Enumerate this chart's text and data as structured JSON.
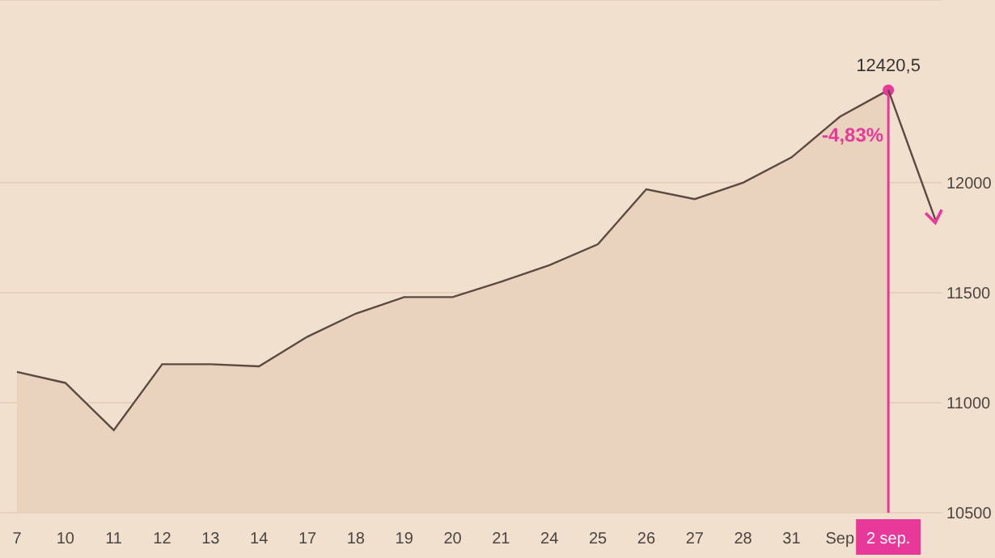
{
  "chart_data": {
    "type": "area",
    "categories": [
      "7",
      "10",
      "11",
      "12",
      "13",
      "14",
      "17",
      "18",
      "19",
      "20",
      "21",
      "24",
      "25",
      "26",
      "27",
      "28",
      "31",
      "Sep",
      "2 sep."
    ],
    "series": [
      {
        "color": "#5c4a40",
        "values": [
          11140,
          11090,
          10875,
          11175,
          11175,
          11165,
          11300,
          11405,
          11480,
          11480,
          11550,
          11625,
          11720,
          11970,
          11925,
          12000,
          12115,
          12300,
          12420.5
        ]
      }
    ],
    "ylim": [
      10500,
      12830
    ],
    "yticks": [
      10500,
      11000,
      11500,
      12000
    ],
    "grid": "y",
    "ref_lines": [
      {
        "axis": "x",
        "value": "2 sep.",
        "color": "#e8399a"
      }
    ],
    "annotations": [
      {
        "text": "12420,5",
        "x": "2 sep.",
        "y": 12420.5
      },
      "-4,83%"
    ]
  }
}
